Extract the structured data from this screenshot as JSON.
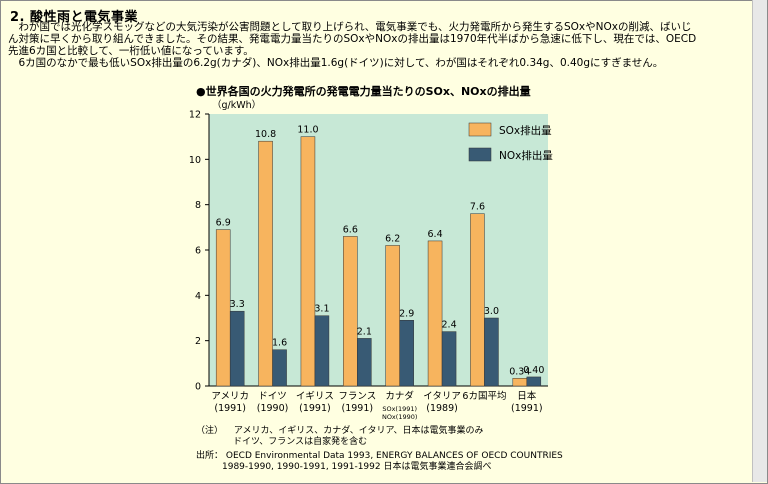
{
  "section": {
    "heading": "2.  酸性雨と電気事業",
    "paragraphs": [
      "　わが国では光化学スモッグなどの大気汚染が公害問題として取り上げられ、電気事業でも、火力発電所から発生するSOxやNOxの削減、ばいじ",
      "ん対策に早くから取り組んできました。その結果、発電電力量当たりのSOxやNOxの排出量は1970年代半ばから急速に低下し、現在では、OECD",
      "先進6カ国と比較して、一桁低い値になっています。",
      "　6カ国のなかで最も低いSOx排出量の6.2g(カナダ)、NOx排出量1.6g(ドイツ)に対して、わが国はそれぞれ0.34g、0.40gにすぎません。"
    ]
  },
  "chart_data": {
    "type": "bar",
    "title": "●世界各国の火力発電所の発電電力量当たりのSOx、NOxの排出量",
    "ylabel": "（g/kWh）",
    "ylim": [
      0,
      12
    ],
    "yticks": [
      0,
      2,
      4,
      6,
      8,
      10,
      12
    ],
    "categories": [
      "アメリカ",
      "ドイツ",
      "イギリス",
      "フランス",
      "カナダ",
      "イタリア",
      "6カ国平均",
      "日本"
    ],
    "category_years": [
      "(1991)",
      "(1990)",
      "(1991)",
      "(1991)",
      "SOx(1991)\nNOx(1990)",
      "(1989)",
      "",
      "(1991)"
    ],
    "series": [
      {
        "name": "SOx排出量",
        "color": "#f7b45e",
        "values": [
          6.9,
          10.8,
          11.0,
          6.6,
          6.2,
          6.4,
          7.6,
          0.34
        ]
      },
      {
        "name": "NOx排出量",
        "color": "#385a74",
        "values": [
          3.3,
          1.6,
          3.1,
          2.1,
          2.9,
          2.4,
          3.0,
          0.4
        ]
      }
    ],
    "value_labels": {
      "SOx": [
        "6.9",
        "10.8",
        "11.0",
        "6.6",
        "6.2",
        "6.4",
        "7.6",
        "0.34"
      ],
      "NOx": [
        "3.3",
        "1.6",
        "3.1",
        "2.1",
        "2.9",
        "2.4",
        "3.0",
        "0.40"
      ]
    },
    "legend_position": "top-right",
    "plot_background": "#c7e8d6",
    "grid": false
  },
  "notes": {
    "note_label": "（注）",
    "note_line1": "アメリカ、イギリス、カナダ、イタリア、日本は電気事業のみ",
    "note_line2": "ドイツ、フランスは自家発を含む",
    "source_label": "出所：",
    "source_line1": "OECD Environmental Data 1993, ENERGY BALANCES OF OECD COUNTRIES",
    "source_line2": "1989-1990, 1990-1991, 1991-1992 日本は電気事業連合会調べ"
  }
}
